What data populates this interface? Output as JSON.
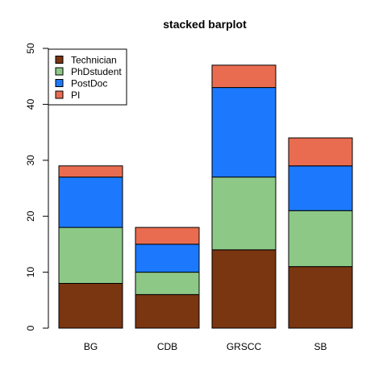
{
  "chart_data": {
    "type": "bar",
    "stacked": true,
    "title": "stacked barplot",
    "xlabel": "",
    "ylabel": "",
    "categories": [
      "BG",
      "CDB",
      "GRSCC",
      "SB"
    ],
    "series": [
      {
        "name": "Technician",
        "color": "#7a3511",
        "values": [
          8,
          6,
          14,
          11
        ]
      },
      {
        "name": "PhDstudent",
        "color": "#8dc887",
        "values": [
          10,
          4,
          13,
          10
        ]
      },
      {
        "name": "PostDoc",
        "color": "#1c79fd",
        "values": [
          9,
          5,
          16,
          8
        ]
      },
      {
        "name": "PI",
        "color": "#ea6c50",
        "values": [
          2,
          3,
          4,
          5
        ]
      }
    ],
    "ylim": [
      0,
      50
    ],
    "yticks": [
      0,
      10,
      20,
      30,
      40,
      50
    ],
    "grid": false,
    "legend": "top-left"
  }
}
